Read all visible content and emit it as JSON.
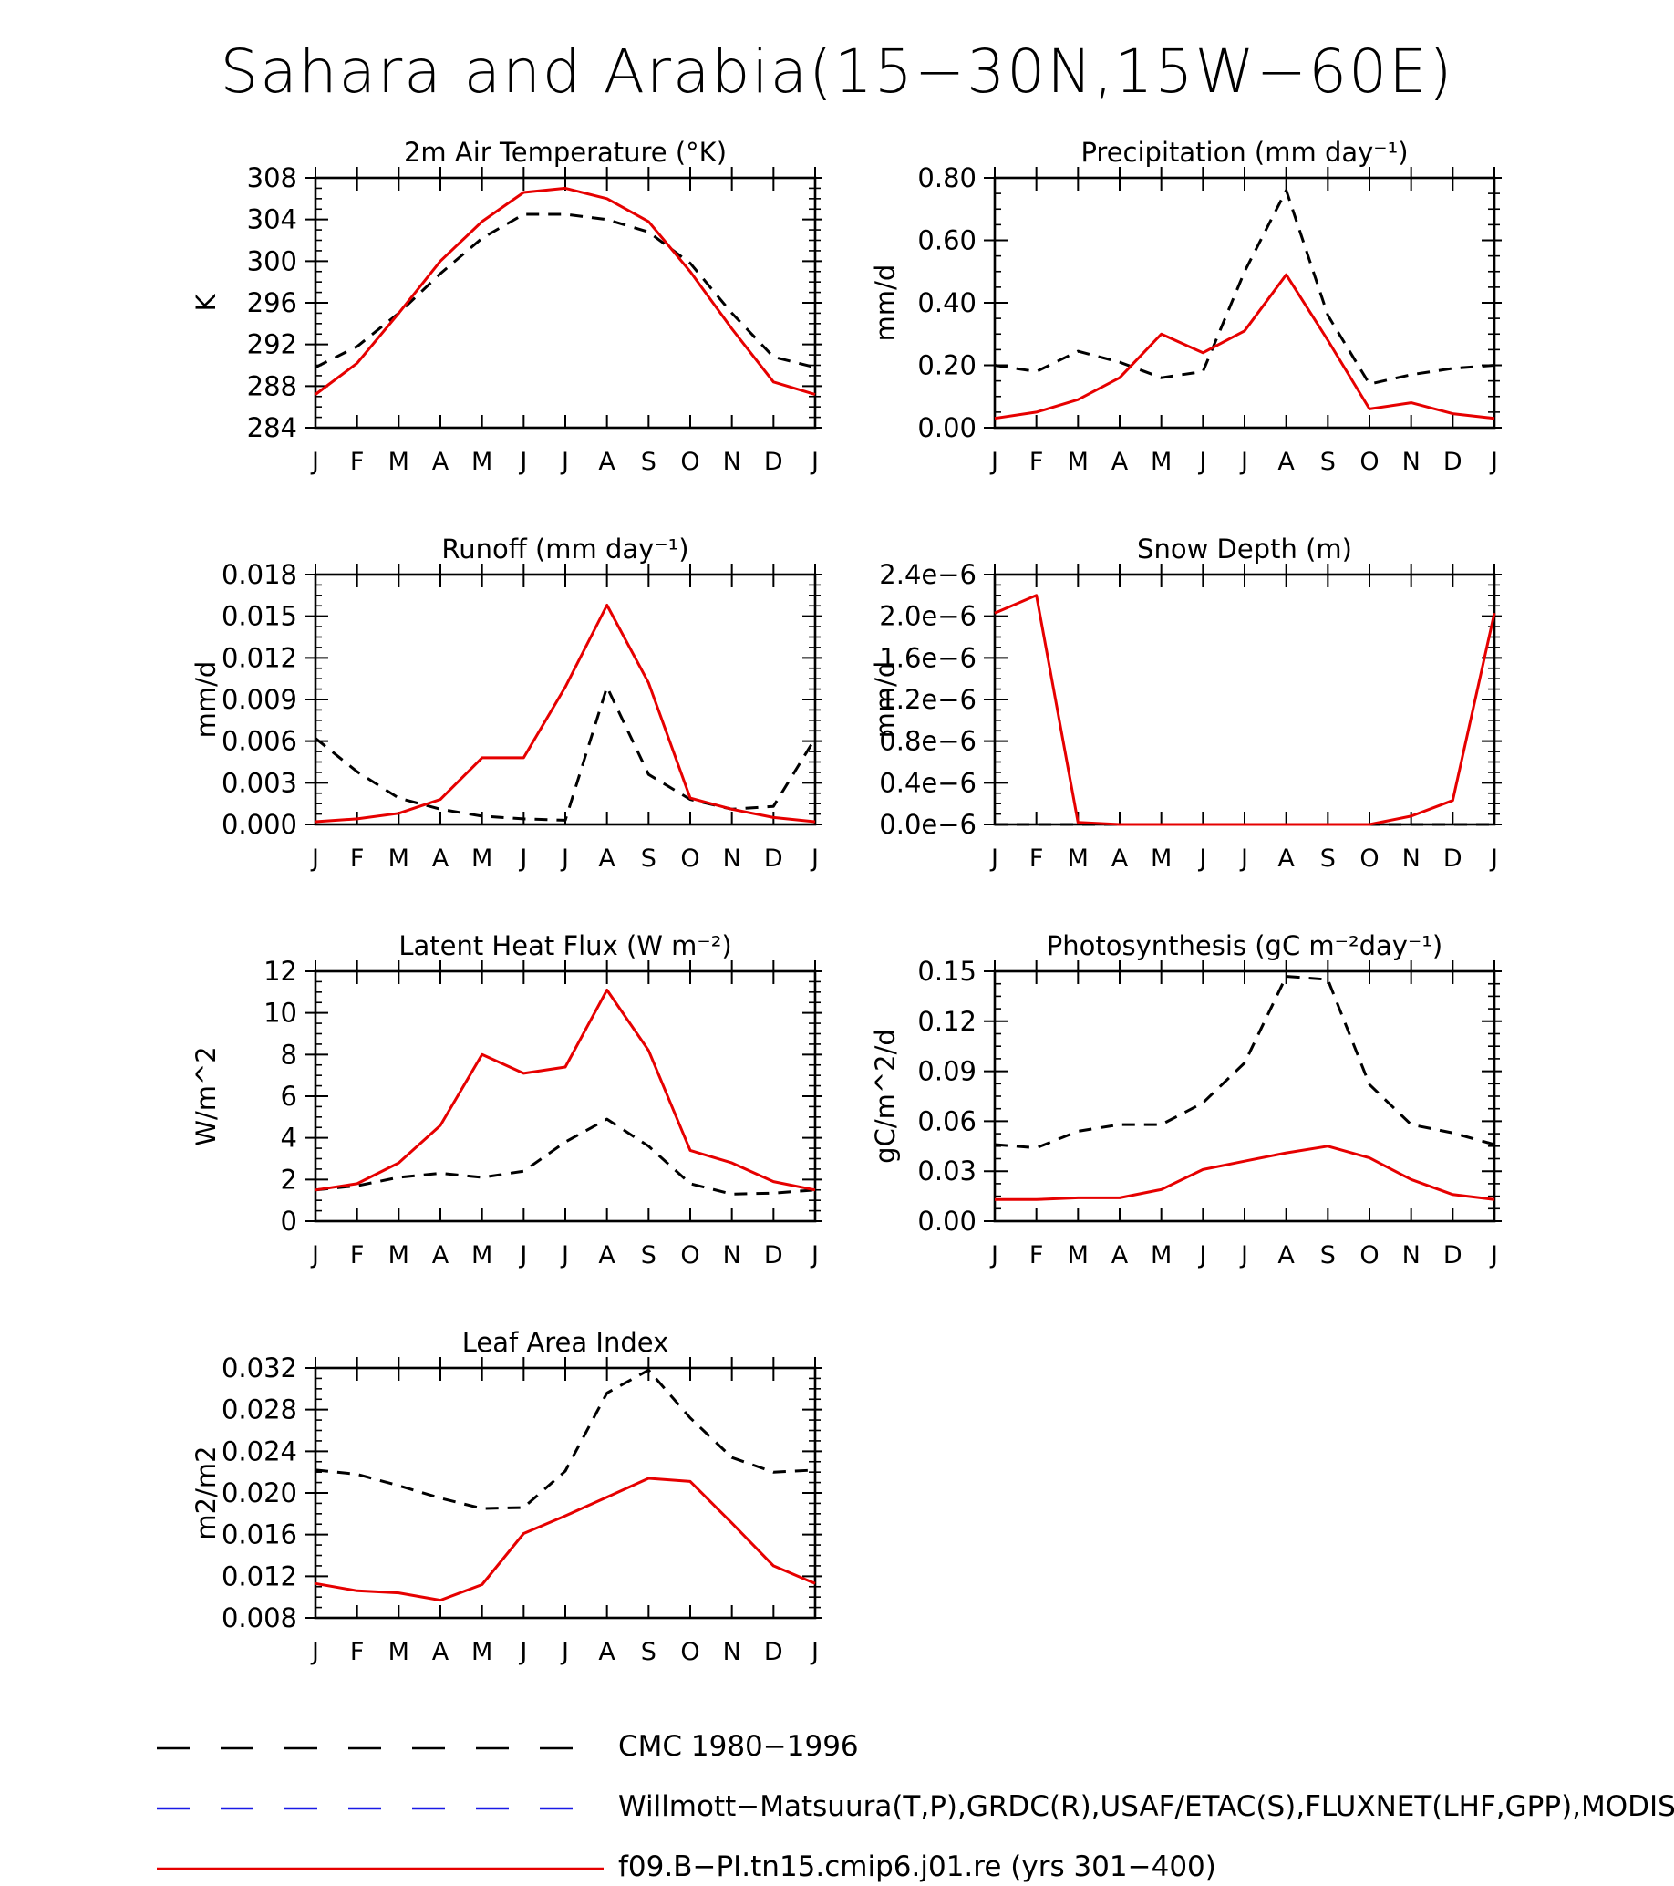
{
  "title": "Sahara and Arabia(15−30N,15W−60E)",
  "months": [
    "J",
    "F",
    "M",
    "A",
    "M",
    "J",
    "J",
    "A",
    "S",
    "O",
    "N",
    "D",
    "J"
  ],
  "colors": {
    "obs": "#000000",
    "obs_blue": "#1a1ae6",
    "model": "#e60000"
  },
  "legend": [
    {
      "label": "CMC 1980−1996",
      "color": "#000000",
      "style": "dashed"
    },
    {
      "label": "Willmott−Matsuura(T,P),GRDC(R),USAF/ETAC(S),FLUXNET(LHF,GPP),MODIS(",
      "color": "#1a1ae6",
      "style": "dashed"
    },
    {
      "label": "f09.B−PI.tn15.cmip6.j01.re (yrs 301−400)",
      "color": "#e60000",
      "style": "solid"
    }
  ],
  "chart_data": [
    {
      "type": "line",
      "title": "2m Air Temperature (°K)",
      "ylabel": "K",
      "ylim": [
        284,
        308
      ],
      "yticks": [
        "284",
        "288",
        "292",
        "296",
        "300",
        "304",
        "308"
      ],
      "series": [
        {
          "name": "CMC 1980−1996",
          "style": "dashed",
          "color": "#000000",
          "values": [
            289.8,
            291.8,
            295.0,
            298.8,
            302.2,
            304.5,
            304.5,
            304.0,
            302.8,
            299.8,
            295.0,
            290.8,
            289.8
          ]
        },
        {
          "name": "f09.B−PI.tn15.cmip6.j01.re (yrs 301−400)",
          "style": "solid",
          "color": "#e60000",
          "values": [
            287.2,
            290.2,
            295.0,
            300.0,
            303.8,
            306.6,
            307.0,
            306.0,
            303.8,
            299.0,
            293.5,
            288.4,
            287.2
          ]
        }
      ]
    },
    {
      "type": "line",
      "title": "Precipitation (mm day⁻¹)",
      "ylabel": "mm/d",
      "ylim": [
        0,
        0.8
      ],
      "yticks": [
        "0.00",
        "0.20",
        "0.40",
        "0.60",
        "0.80"
      ],
      "series": [
        {
          "name": "CMC 1980−1996",
          "style": "dashed",
          "color": "#000000",
          "values": [
            0.2,
            0.18,
            0.245,
            0.21,
            0.16,
            0.18,
            0.5,
            0.76,
            0.36,
            0.14,
            0.17,
            0.19,
            0.2
          ]
        },
        {
          "name": "f09.B−PI.tn15.cmip6.j01.re (yrs 301−400)",
          "style": "solid",
          "color": "#e60000",
          "values": [
            0.03,
            0.05,
            0.09,
            0.16,
            0.3,
            0.24,
            0.31,
            0.49,
            0.28,
            0.06,
            0.08,
            0.045,
            0.03
          ]
        }
      ]
    },
    {
      "type": "line",
      "title": "Runoff (mm day⁻¹)",
      "ylabel": "mm/d",
      "ylim": [
        0,
        0.018
      ],
      "yticks": [
        "0.000",
        "0.003",
        "0.006",
        "0.009",
        "0.012",
        "0.015",
        "0.018"
      ],
      "series": [
        {
          "name": "CMC 1980−1996",
          "style": "dashed",
          "color": "#000000",
          "values": [
            0.0062,
            0.0038,
            0.0019,
            0.0011,
            0.0006,
            0.0004,
            0.0003,
            0.0099,
            0.0036,
            0.0018,
            0.0011,
            0.0013,
            0.0062
          ]
        },
        {
          "name": "f09.B−PI.tn15.cmip6.j01.re (yrs 301−400)",
          "style": "solid",
          "color": "#e60000",
          "values": [
            0.0002,
            0.0004,
            0.0008,
            0.0018,
            0.0048,
            0.0048,
            0.0099,
            0.0158,
            0.0102,
            0.0019,
            0.0011,
            0.0005,
            0.0002
          ]
        }
      ]
    },
    {
      "type": "line",
      "title": "Snow Depth (m)",
      "ylabel": "mm/d",
      "ylim": [
        0,
        2.4e-06
      ],
      "yticks": [
        "0.0e−6",
        "0.4e−6",
        "0.8e−6",
        "1.2e−6",
        "1.6e−6",
        "2.0e−6",
        "2.4e−6"
      ],
      "series": [
        {
          "name": "CMC 1980−1996",
          "style": "dashed",
          "color": "#000000",
          "values": [
            0,
            0,
            0,
            0,
            0,
            0,
            0,
            0,
            0,
            0,
            0,
            0,
            0
          ]
        },
        {
          "name": "f09.B−PI.tn15.cmip6.j01.re (yrs 301−400)",
          "style": "solid",
          "color": "#e60000",
          "values": [
            2.03e-06,
            2.2e-06,
            2e-08,
            0,
            0,
            0,
            0,
            0,
            0,
            0,
            8e-08,
            2.3e-07,
            2.03e-06
          ]
        }
      ]
    },
    {
      "type": "line",
      "title": "Latent Heat Flux (W m⁻²)",
      "ylabel": "W/m^2",
      "ylim": [
        0,
        12
      ],
      "yticks": [
        "0",
        "2",
        "4",
        "6",
        "8",
        "10",
        "12"
      ],
      "series": [
        {
          "name": "CMC 1980−1996",
          "style": "dashed",
          "color": "#000000",
          "values": [
            1.5,
            1.7,
            2.1,
            2.3,
            2.1,
            2.4,
            3.8,
            4.9,
            3.6,
            1.8,
            1.3,
            1.35,
            1.5
          ]
        },
        {
          "name": "f09.B−PI.tn15.cmip6.j01.re (yrs 301−400)",
          "style": "solid",
          "color": "#e60000",
          "values": [
            1.5,
            1.8,
            2.8,
            4.6,
            8.0,
            7.1,
            7.4,
            11.1,
            8.2,
            3.4,
            2.8,
            1.9,
            1.5
          ]
        }
      ]
    },
    {
      "type": "line",
      "title": "Photosynthesis (gC m⁻²day⁻¹)",
      "ylabel": "gC/m^2/d",
      "ylim": [
        0,
        0.15
      ],
      "yticks": [
        "0.00",
        "0.03",
        "0.06",
        "0.09",
        "0.12",
        "0.15"
      ],
      "series": [
        {
          "name": "CMC 1980−1996",
          "style": "dashed",
          "color": "#000000",
          "values": [
            0.046,
            0.044,
            0.054,
            0.058,
            0.058,
            0.071,
            0.095,
            0.147,
            0.145,
            0.082,
            0.058,
            0.053,
            0.046
          ]
        },
        {
          "name": "f09.B−PI.tn15.cmip6.j01.re (yrs 301−400)",
          "style": "solid",
          "color": "#e60000",
          "values": [
            0.013,
            0.013,
            0.014,
            0.014,
            0.019,
            0.031,
            0.036,
            0.041,
            0.045,
            0.038,
            0.025,
            0.016,
            0.013
          ]
        }
      ]
    },
    {
      "type": "line",
      "title": "Leaf Area Index",
      "ylabel": "m2/m2",
      "ylim": [
        0.008,
        0.032
      ],
      "yticks": [
        "0.008",
        "0.012",
        "0.016",
        "0.020",
        "0.024",
        "0.028",
        "0.032"
      ],
      "series": [
        {
          "name": "CMC 1980−1996",
          "style": "dashed",
          "color": "#000000",
          "values": [
            0.0222,
            0.0218,
            0.0207,
            0.0195,
            0.0185,
            0.0186,
            0.0221,
            0.0296,
            0.0318,
            0.0272,
            0.0234,
            0.022,
            0.0222
          ]
        },
        {
          "name": "f09.B−PI.tn15.cmip6.j01.re (yrs 301−400)",
          "style": "solid",
          "color": "#e60000",
          "values": [
            0.0113,
            0.0106,
            0.0104,
            0.0097,
            0.0112,
            0.0161,
            0.0178,
            0.0196,
            0.0214,
            0.0211,
            0.0171,
            0.013,
            0.0113
          ]
        }
      ]
    }
  ]
}
